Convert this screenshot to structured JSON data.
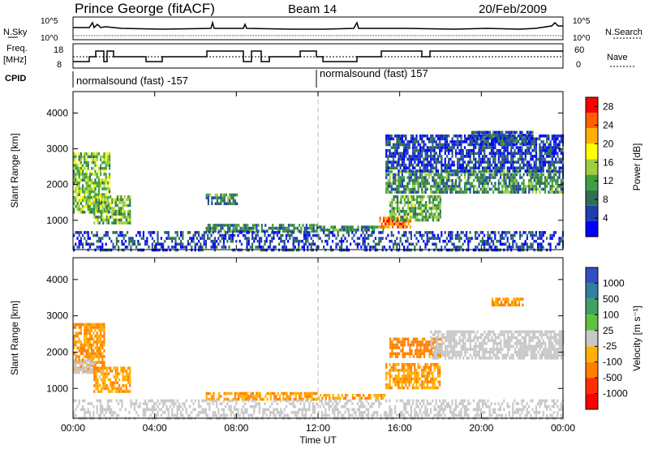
{
  "header": {
    "title": "Prince George (fitACF)",
    "beam": "Beam 14",
    "date": "20/Feb/2009"
  },
  "status_panels": {
    "nsky_label": "N.Sky",
    "nsky_ticks": [
      "10^5",
      "10^0"
    ],
    "nsearch_label": "N.Search",
    "nsearch_ticks": [
      "10^5",
      "10^0"
    ],
    "freq_label": "Freq.",
    "freq_unit": "[MHz]",
    "freq_ticks": [
      "18",
      "8"
    ],
    "nave_label": "Nave",
    "nave_ticks": [
      "60",
      "0"
    ],
    "cpid_label": "CPID",
    "cpid_segments": [
      "normalsound (fast) -157",
      "normalsound (fast) 157"
    ]
  },
  "chart_data": [
    {
      "type": "heatmap",
      "name": "power",
      "ylabel": "Slant Range [km]",
      "xlabel": "Time UT",
      "x_ticks": [
        "00:00",
        "04:00",
        "08:00",
        "12:00",
        "16:00",
        "20:00",
        "00:00"
      ],
      "x_range_hours": [
        0,
        24
      ],
      "y_ticks": [
        1000,
        2000,
        3000,
        4000
      ],
      "ylim": [
        180,
        4600
      ],
      "colorbar_label": "Power [dB]",
      "colorbar_ticks": [
        4,
        8,
        12,
        16,
        20,
        24,
        28
      ],
      "colorbar_range": [
        0,
        30
      ],
      "colors": [
        "#0000ff",
        "#1f3fb0",
        "#2f6f55",
        "#3f9f3f",
        "#9fcf3f",
        "#ffff00",
        "#ffb000",
        "#ff6000",
        "#ff0000"
      ],
      "echo_regions": [
        {
          "t0": 0.0,
          "t1": 1.8,
          "r0": 1200,
          "r1": 2900,
          "value": 14
        },
        {
          "t0": 1.0,
          "t1": 2.8,
          "r0": 900,
          "r1": 1700,
          "value": 13
        },
        {
          "t0": 6.5,
          "t1": 8.0,
          "r0": 1450,
          "r1": 1750,
          "value": 10
        },
        {
          "t0": 6.5,
          "t1": 12.0,
          "r0": 700,
          "r1": 900,
          "value": 9
        },
        {
          "t0": 12.0,
          "t1": 15.3,
          "r0": 700,
          "r1": 850,
          "value": 10
        },
        {
          "t0": 15.0,
          "t1": 16.5,
          "r0": 800,
          "r1": 1100,
          "value": 26
        },
        {
          "t0": 15.5,
          "t1": 18.0,
          "r0": 1000,
          "r1": 1700,
          "value": 12
        },
        {
          "t0": 15.3,
          "t1": 24.0,
          "r0": 1800,
          "r1": 2400,
          "value": 10
        },
        {
          "t0": 15.3,
          "t1": 24.0,
          "r0": 2400,
          "r1": 3400,
          "value": 5
        },
        {
          "t0": 19.5,
          "t1": 22.5,
          "r0": 3150,
          "r1": 3500,
          "value": 6
        },
        {
          "t0": 0.0,
          "t1": 24.0,
          "r0": 200,
          "r1": 700,
          "value": 5
        }
      ]
    },
    {
      "type": "heatmap",
      "name": "velocity",
      "ylabel": "Slant Range [km]",
      "xlabel": "Time UT",
      "x_ticks": [
        "00:00",
        "04:00",
        "08:00",
        "12:00",
        "16:00",
        "20:00",
        "00:00"
      ],
      "x_range_hours": [
        0,
        24
      ],
      "y_ticks": [
        1000,
        2000,
        3000,
        4000
      ],
      "ylim": [
        180,
        4600
      ],
      "colorbar_label": "Velocity [m s⁻¹]",
      "colorbar_ticks": [
        "1000",
        "500",
        "100",
        "25",
        "-25",
        "-100",
        "-500",
        "-1000"
      ],
      "colors": [
        "#3050c0",
        "#3080a0",
        "#40a060",
        "#60c040",
        "#c8c8c8",
        "#ffb000",
        "#ff8000",
        "#ff3000",
        "#ff0000"
      ],
      "echo_regions": [
        {
          "t0": 0.0,
          "t1": 1.5,
          "r0": 1500,
          "r1": 2800,
          "value": -120
        },
        {
          "t0": 0.0,
          "t1": 1.0,
          "r0": 1400,
          "r1": 1800,
          "value": 0
        },
        {
          "t0": 1.0,
          "t1": 2.8,
          "r0": 900,
          "r1": 1600,
          "value": -80
        },
        {
          "t0": 6.5,
          "t1": 12.0,
          "r0": 700,
          "r1": 900,
          "value": -90
        },
        {
          "t0": 12.0,
          "t1": 15.3,
          "r0": 700,
          "r1": 850,
          "value": -90
        },
        {
          "t0": 15.3,
          "t1": 18.0,
          "r0": 1000,
          "r1": 1700,
          "value": -90
        },
        {
          "t0": 15.5,
          "t1": 18.0,
          "r0": 1900,
          "r1": 2400,
          "value": -200
        },
        {
          "t0": 17.5,
          "t1": 24.0,
          "r0": 1800,
          "r1": 2600,
          "value": 0
        },
        {
          "t0": 20.5,
          "t1": 22.0,
          "r0": 3300,
          "r1": 3500,
          "value": -100
        },
        {
          "t0": 0.0,
          "t1": 24.0,
          "r0": 200,
          "r1": 700,
          "value": 0
        }
      ]
    }
  ]
}
